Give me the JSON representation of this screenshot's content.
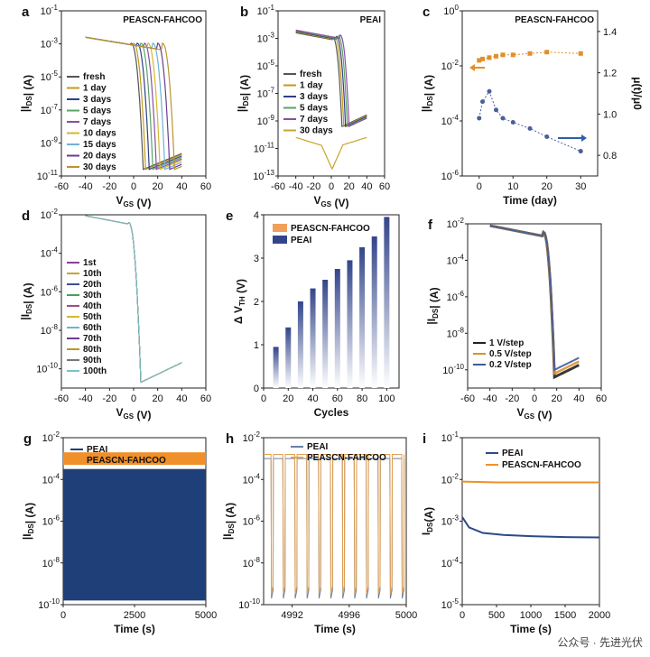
{
  "watermark": "公众号 · 先进光伏",
  "chart_data": [
    {
      "panel": "a",
      "type": "line",
      "title": "PEASCN-FAHCOO",
      "xlabel": "V_GS (V)",
      "ylabel": "|I_DS| (A)",
      "xlim": [
        -60,
        60
      ],
      "ylim_exp": [
        -11,
        -1
      ],
      "yscale": "log",
      "xticks": [
        "-60",
        "-40",
        "-20",
        "0",
        "20",
        "40",
        "60"
      ],
      "yticks": [
        "10-11",
        "10-9",
        "10-7",
        "10-5",
        "10-3",
        "10-1"
      ],
      "legend_position": "left-center",
      "series": [
        {
          "name": "fresh",
          "color": "#555555",
          "vth": 8
        },
        {
          "name": "1 day",
          "color": "#c49a1b",
          "vth": 10
        },
        {
          "name": "3 days",
          "color": "#2f3f88",
          "vth": 13
        },
        {
          "name": "5 days",
          "color": "#5aa469",
          "vth": 16
        },
        {
          "name": "7 days",
          "color": "#8a4fa0",
          "vth": 19
        },
        {
          "name": "10 days",
          "color": "#d4b92d",
          "vth": 22
        },
        {
          "name": "15 days",
          "color": "#6fb2d6",
          "vth": 26
        },
        {
          "name": "20 days",
          "color": "#6b3b92",
          "vth": 30
        },
        {
          "name": "30 days",
          "color": "#b8962e",
          "vth": 34
        }
      ]
    },
    {
      "panel": "b",
      "type": "line",
      "title": "PEAI",
      "xlabel": "V_GS (V)",
      "ylabel": "|I_DS| (A)",
      "xlim": [
        -60,
        60
      ],
      "ylim_exp": [
        -13,
        -1
      ],
      "yscale": "log",
      "xticks": [
        "-60",
        "-40",
        "-20",
        "0",
        "20",
        "40",
        "60"
      ],
      "yticks": [
        "10-13",
        "10-11",
        "10-9",
        "10-7",
        "10-5",
        "10-3",
        "10-1"
      ],
      "legend_position": "left-center",
      "series": [
        {
          "name": "fresh",
          "color": "#555555",
          "vth": 12
        },
        {
          "name": "1 day",
          "color": "#c49a1b",
          "vth": 14
        },
        {
          "name": "3 days",
          "color": "#2f3f88",
          "vth": 16
        },
        {
          "name": "5 days",
          "color": "#5aa469",
          "vth": 18
        },
        {
          "name": "7 days",
          "color": "#8a4fa0",
          "vth": 20
        },
        {
          "name": "30 days",
          "color": "#c9a42e",
          "vth": 0
        }
      ]
    },
    {
      "panel": "c",
      "type": "scatter",
      "title": "PEASCN-FAHCOO",
      "xlabel": "Time (day)",
      "ylabel": "|I_DS| (A)",
      "y2label": "μ(t)/μ0",
      "xlim": [
        -5,
        35
      ],
      "ylim_exp": [
        -6,
        0
      ],
      "y2lim": [
        0.7,
        1.5
      ],
      "xticks": [
        "0",
        "10",
        "20",
        "30"
      ],
      "yticks": [
        "10-6",
        "10-4",
        "10-2",
        "100"
      ],
      "y2ticks": [
        "0.8",
        "1.0",
        "1.2",
        "1.4"
      ],
      "series": [
        {
          "name": "I_DS",
          "color": "#e0902a",
          "x": [
            0,
            1,
            3,
            5,
            7,
            10,
            15,
            20,
            30
          ],
          "y_exp": [
            -1.8,
            -1.75,
            -1.7,
            -1.65,
            -1.6,
            -1.6,
            -1.55,
            -1.5,
            -1.55
          ]
        },
        {
          "name": "mobility",
          "color": "#4a5f9a",
          "x": [
            0,
            1,
            3,
            5,
            7,
            10,
            15,
            20,
            30
          ],
          "y": [
            0.98,
            1.06,
            1.11,
            1.02,
            0.98,
            0.96,
            0.93,
            0.89,
            0.82
          ]
        }
      ]
    },
    {
      "panel": "d",
      "type": "line",
      "xlabel": "V_GS (V)",
      "ylabel": "|I_DS| (A)",
      "xlim": [
        -60,
        60
      ],
      "ylim_exp": [
        -11,
        -2
      ],
      "xticks": [
        "-60",
        "-40",
        "-20",
        "0",
        "20",
        "40",
        "60"
      ],
      "yticks": [
        "10-10",
        "10-8",
        "10-6",
        "10-4",
        "10-2"
      ],
      "legend_position": "left-center",
      "series_names": [
        "1st",
        "10th",
        "20th",
        "30th",
        "40th",
        "50th",
        "60th",
        "70th",
        "80th",
        "90th",
        "100th"
      ],
      "series_colors": [
        "#8a3f9a",
        "#c9a42e",
        "#3c4f9a",
        "#4aa05a",
        "#a04f8a",
        "#d4b92d",
        "#6fb2d6",
        "#6b3b92",
        "#b8962e",
        "#777777",
        "#79c2c4"
      ]
    },
    {
      "panel": "e",
      "type": "bar",
      "xlabel": "Cycles",
      "ylabel": "Δ V_TH (V)",
      "xlim": [
        0,
        110
      ],
      "ylim": [
        0,
        4
      ],
      "xticks": [
        "0",
        "20",
        "40",
        "60",
        "80",
        "100"
      ],
      "yticks": [
        "0",
        "1",
        "2",
        "3",
        "4"
      ],
      "categories": [
        10,
        20,
        30,
        40,
        50,
        60,
        70,
        80,
        90,
        100
      ],
      "series": [
        {
          "name": "PEASCN-FAHCOO",
          "color": "#f0a05a",
          "values": [
            0,
            0,
            0,
            0,
            0,
            0,
            0,
            0,
            0,
            0
          ]
        },
        {
          "name": "PEAI",
          "color": "#33458a",
          "values": [
            0.95,
            1.4,
            2.0,
            2.3,
            2.5,
            2.75,
            2.95,
            3.25,
            3.5,
            3.95
          ]
        }
      ]
    },
    {
      "panel": "f",
      "type": "line",
      "xlabel": "V_GS (V)",
      "ylabel": "|I_DS| (A)",
      "xlim": [
        -60,
        60
      ],
      "ylim_exp": [
        -11,
        -2
      ],
      "xticks": [
        "-60",
        "-40",
        "-20",
        "0",
        "20",
        "40",
        "60"
      ],
      "yticks": [
        "10-10",
        "10-8",
        "10-6",
        "10-4",
        "10-2"
      ],
      "legend_position": "bottom-left",
      "series": [
        {
          "name": "1 V/step",
          "color": "#222222"
        },
        {
          "name": "0.5 V/step",
          "color": "#e0902a"
        },
        {
          "name": "0.2 V/step",
          "color": "#3d5c9a"
        }
      ]
    },
    {
      "panel": "g",
      "type": "area",
      "xlabel": "Time (s)",
      "ylabel": "|I_DS| (A)",
      "xlim": [
        0,
        5000
      ],
      "ylim_exp": [
        -10,
        -2
      ],
      "xticks": [
        "0",
        "2500",
        "5000"
      ],
      "yticks": [
        "10-10",
        "10-8",
        "10-6",
        "10-4",
        "10-2"
      ],
      "series": [
        {
          "name": "PEAI",
          "color": "#1f3f78",
          "high_exp": -3.5,
          "low_exp": -9.8
        },
        {
          "name": "PEASCN-FAHCOO",
          "color": "#f0902a",
          "high_exp": -2.7,
          "low_exp": -3.3
        }
      ]
    },
    {
      "panel": "h",
      "type": "line",
      "xlabel": "Time (s)",
      "ylabel": "|I_DS| (A)",
      "xlim": [
        4990,
        5000
      ],
      "ylim_exp": [
        -10,
        -2
      ],
      "xticks": [
        "4992",
        "4996",
        "5000"
      ],
      "yticks": [
        "10-10",
        "10-8",
        "10-6",
        "10-4",
        "10-2"
      ],
      "series": [
        {
          "name": "PEAI",
          "color": "#6a7fa8",
          "high_exp": -3.0,
          "low_exp": -9.7
        },
        {
          "name": "PEASCN-FAHCOO",
          "color": "#e0a050",
          "high_exp": -2.8,
          "low_exp": -9.5
        }
      ],
      "cycles": 12
    },
    {
      "panel": "i",
      "type": "line",
      "xlabel": "Time (s)",
      "ylabel": "I_DS(A)",
      "xlim": [
        0,
        2000
      ],
      "ylim_exp": [
        -5,
        -1
      ],
      "xticks": [
        "0",
        "500",
        "1000",
        "1500",
        "2000"
      ],
      "yticks": [
        "10-5",
        "10-4",
        "10-3",
        "10-2",
        "10-1"
      ],
      "series": [
        {
          "name": "PEAI",
          "color": "#2b4a86",
          "x": [
            0,
            100,
            300,
            600,
            1000,
            1500,
            2000
          ],
          "y_exp": [
            -2.9,
            -3.15,
            -3.28,
            -3.33,
            -3.36,
            -3.38,
            -3.39
          ]
        },
        {
          "name": "PEASCN-FAHCOO",
          "color": "#f0902a",
          "x": [
            0,
            500,
            1000,
            1500,
            2000
          ],
          "y_exp": [
            -2.05,
            -2.07,
            -2.07,
            -2.07,
            -2.07
          ]
        }
      ]
    }
  ]
}
